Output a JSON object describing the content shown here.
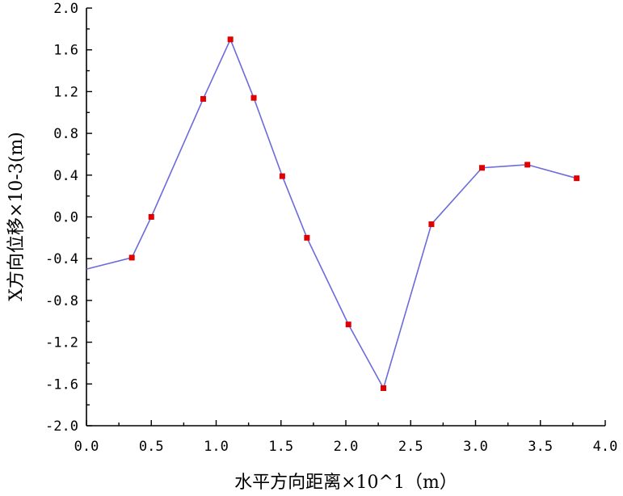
{
  "chart_data": {
    "type": "line",
    "title": "",
    "xlabel": "水平方向距离×10^1（m）",
    "ylabel": "X方向位移×10-3(m)",
    "xlim": [
      0.0,
      4.0
    ],
    "ylim": [
      -2.0,
      2.0
    ],
    "x_ticks": [
      "0.0",
      "0.5",
      "1.0",
      "1.5",
      "2.0",
      "2.5",
      "3.0",
      "3.5",
      "4.0"
    ],
    "y_ticks": [
      "2.0",
      "1.6",
      "1.2",
      "0.8",
      "0.4",
      "0.0",
      "-0.4",
      "-0.8",
      "-1.2",
      "-1.6",
      "-2.0"
    ],
    "grid": false,
    "legend": "none",
    "line_start": {
      "x": 0.0,
      "y": -0.5
    },
    "series": [
      {
        "line_color": "#6b6bdc",
        "marker_color": "#e00000",
        "marker": "square",
        "x": [
          0.35,
          0.5,
          0.9,
          1.11,
          1.29,
          1.51,
          1.7,
          2.02,
          2.29,
          2.66,
          3.05,
          3.4,
          3.78
        ],
        "y": [
          -0.39,
          0.0,
          1.13,
          1.7,
          1.14,
          0.39,
          -0.2,
          -1.03,
          -1.64,
          -0.07,
          0.47,
          0.5,
          0.37
        ]
      }
    ]
  }
}
